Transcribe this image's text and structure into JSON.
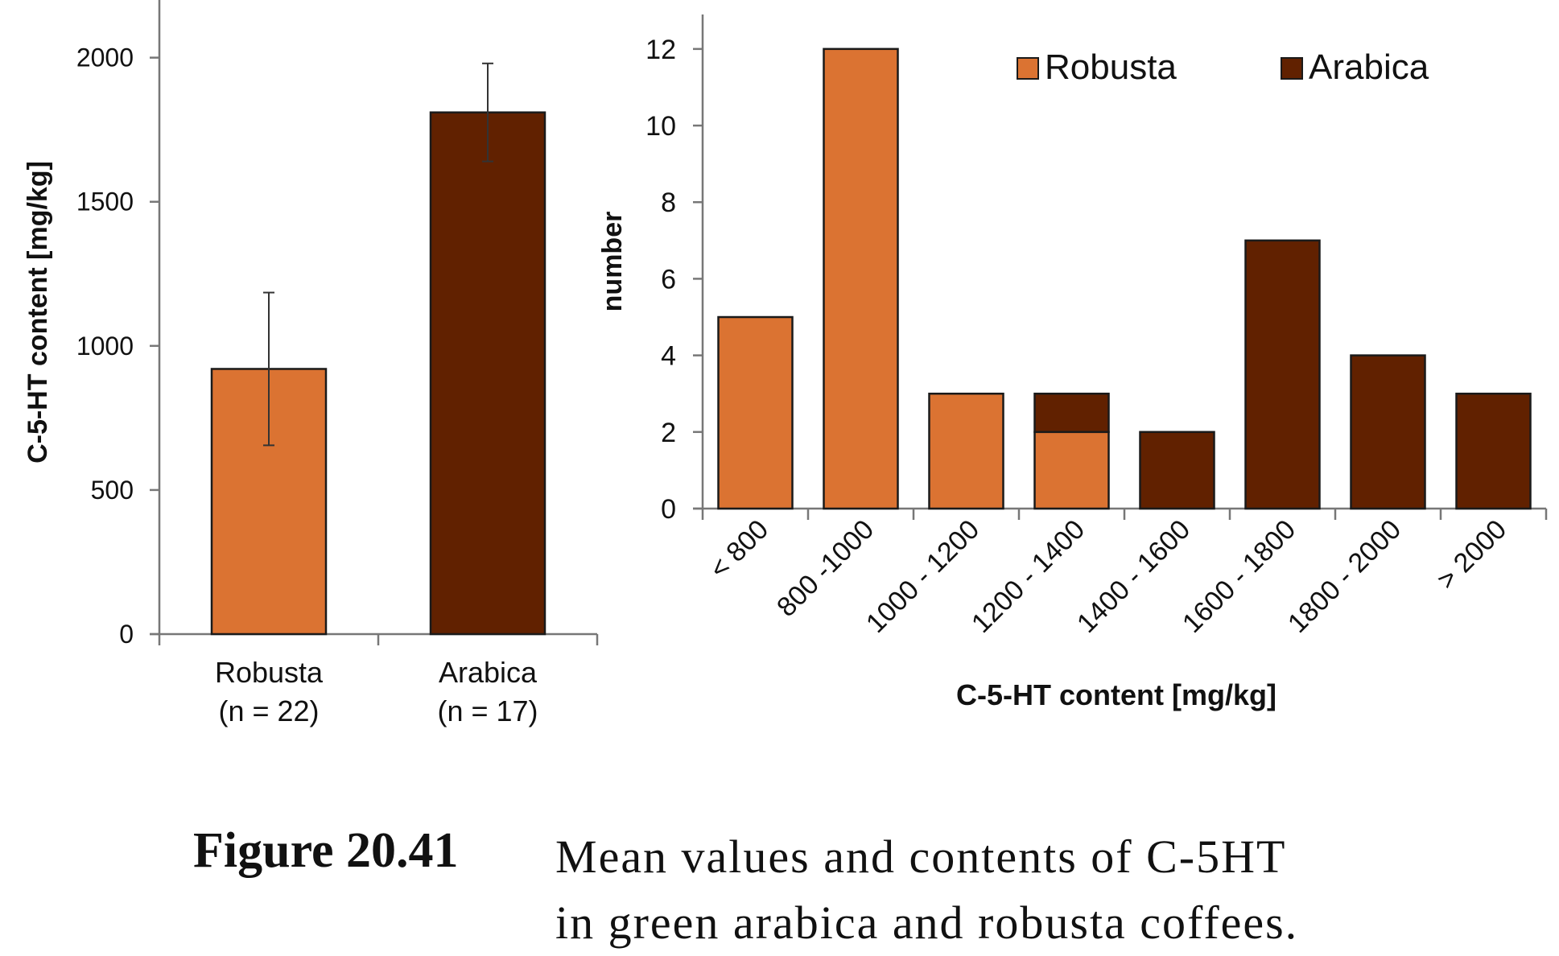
{
  "colors": {
    "robusta": "#DB7332",
    "arabica": "#612100",
    "axis": "#777777",
    "stroke": "#1a1a1a"
  },
  "chart_data": [
    {
      "type": "bar",
      "categories": [
        "Robusta\n(n = 22)",
        "Arabica\n(n = 17)"
      ],
      "values": [
        920,
        1810
      ],
      "error": [
        265,
        170
      ],
      "ylabel": "C-5-HT content [mg/kg]",
      "xlabel": "",
      "ylim": [
        0,
        2200
      ],
      "yticks": [
        0,
        500,
        1000,
        1500,
        2000
      ],
      "grid": false
    },
    {
      "type": "bar",
      "stacked": true,
      "categories": [
        "< 800",
        "800 -1000",
        "1000 - 1200",
        "1200 - 1400",
        "1400 - 1600",
        "1600 - 1800",
        "1800 - 2000",
        "> 2000"
      ],
      "series": [
        {
          "name": "Robusta",
          "values": [
            5,
            12,
            3,
            2,
            0,
            0,
            0,
            0
          ]
        },
        {
          "name": "Arabica",
          "values": [
            0,
            0,
            0,
            1,
            2,
            7,
            4,
            3
          ]
        }
      ],
      "xlabel": "C-5-HT content [mg/kg]",
      "ylabel": "number",
      "ylim": [
        0,
        12.9
      ],
      "yticks": [
        0,
        2,
        4,
        6,
        8,
        10,
        12
      ],
      "legend": "top",
      "grid": false
    }
  ],
  "caption": {
    "label": "Figure 20.41",
    "lines": [
      "Mean values and contents of C-5HT",
      "in green arabica and robusta coffees."
    ]
  }
}
